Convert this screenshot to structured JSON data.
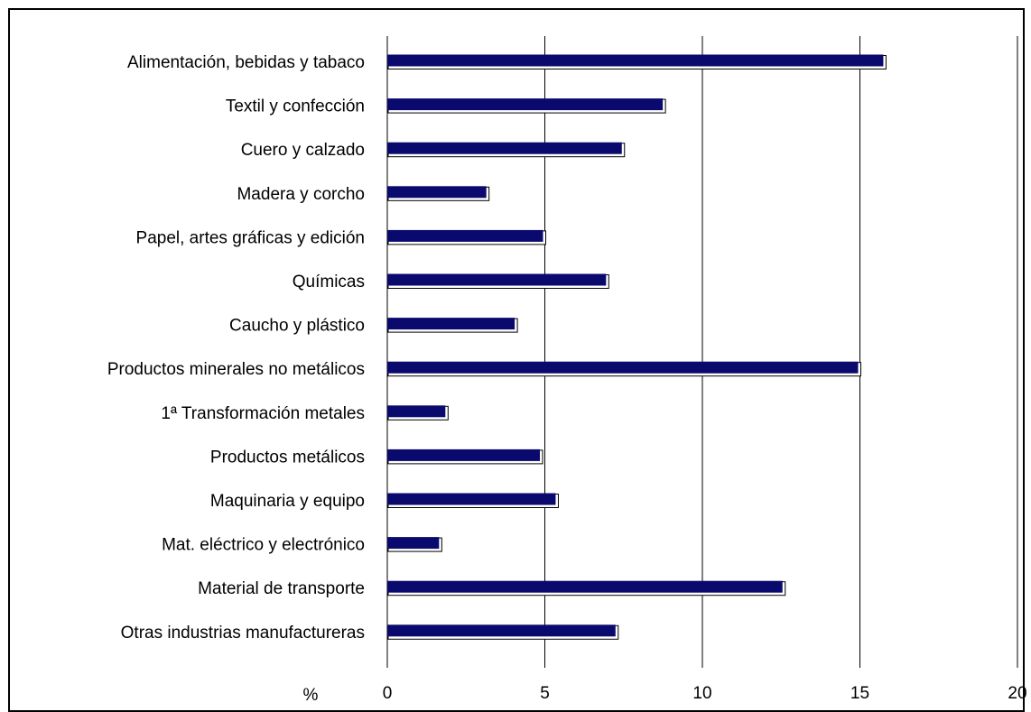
{
  "chart_data": {
    "type": "bar",
    "orientation": "horizontal",
    "categories": [
      "Alimentación, bebidas y tabaco",
      "Textil y confección",
      "Cuero y calzado",
      "Madera y corcho",
      "Papel, artes gráficas y edición",
      "Químicas",
      "Caucho y plástico",
      "Productos minerales no metálicos",
      "1ª Transformación metales",
      "Productos metálicos",
      "Maquinaria y equipo",
      "Mat. eléctrico y electrónico",
      "Material de transporte",
      "Otras industrias manufactureras"
    ],
    "values": [
      15.8,
      8.8,
      7.5,
      3.2,
      5.0,
      7.0,
      4.1,
      15.0,
      1.9,
      4.9,
      5.4,
      1.7,
      12.6,
      7.3
    ],
    "xlabel": "%",
    "xlim": [
      0,
      20
    ],
    "xticks": [
      "0",
      "5",
      "10",
      "15",
      "20"
    ],
    "grid": "vertical",
    "legend": "none",
    "colors": {
      "bar": "#0a0a6e",
      "bar_edge": "#000000",
      "grid": "#000000"
    }
  }
}
